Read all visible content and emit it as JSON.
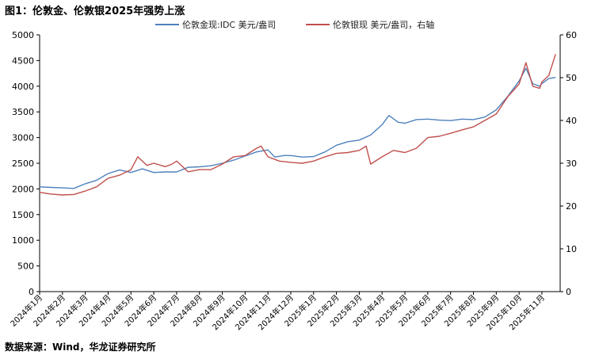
{
  "title": "图1：伦敦金、伦敦银2025年强势上涨",
  "source": "数据来源：Wind，华龙证券研究所",
  "colors": {
    "gold": "#4F81BD",
    "silver": "#C0504D",
    "axis": "#000000"
  },
  "chart_data": {
    "type": "line",
    "legend_position": "top-center",
    "grid": false,
    "y_left": {
      "min": 0,
      "max": 5000,
      "ticks": [
        0,
        500,
        1000,
        1500,
        2000,
        2500,
        3000,
        3500,
        4000,
        4500,
        5000
      ]
    },
    "y_right": {
      "min": 0,
      "max": 60,
      "ticks": [
        0,
        10,
        20,
        30,
        40,
        50,
        60
      ]
    },
    "x_labels": [
      "2024年1月",
      "2024年2月",
      "2024年3月",
      "2024年4月",
      "2024年5月",
      "2024年6月",
      "2024年7月",
      "2024年8月",
      "2024年9月",
      "2024年10月",
      "2024年11月",
      "2024年12月",
      "2025年1月",
      "2025年2月",
      "2025年3月",
      "2025年4月",
      "2025年5月",
      "2025年6月",
      "2025年7月",
      "2025年8月",
      "2025年9月",
      "2025年10月",
      "2025年11月"
    ],
    "series": [
      {
        "name": "伦敦金现:IDC 美元/盎司",
        "axis": "left",
        "color": "#4F81BD",
        "points": [
          [
            0,
            2040
          ],
          [
            0.5,
            2030
          ],
          [
            1,
            2020
          ],
          [
            1.5,
            2010
          ],
          [
            2,
            2100
          ],
          [
            2.5,
            2170
          ],
          [
            3,
            2300
          ],
          [
            3.5,
            2370
          ],
          [
            4,
            2320
          ],
          [
            4.5,
            2390
          ],
          [
            5,
            2320
          ],
          [
            5.5,
            2330
          ],
          [
            6,
            2330
          ],
          [
            6.5,
            2420
          ],
          [
            7,
            2430
          ],
          [
            7.5,
            2450
          ],
          [
            8,
            2500
          ],
          [
            8.5,
            2560
          ],
          [
            9,
            2640
          ],
          [
            9.5,
            2720
          ],
          [
            10,
            2760
          ],
          [
            10.3,
            2620
          ],
          [
            10.7,
            2650
          ],
          [
            11,
            2650
          ],
          [
            11.5,
            2620
          ],
          [
            12,
            2630
          ],
          [
            12.5,
            2720
          ],
          [
            13,
            2850
          ],
          [
            13.5,
            2920
          ],
          [
            14,
            2950
          ],
          [
            14.5,
            3050
          ],
          [
            15,
            3250
          ],
          [
            15.3,
            3430
          ],
          [
            15.7,
            3300
          ],
          [
            16,
            3280
          ],
          [
            16.5,
            3350
          ],
          [
            17,
            3360
          ],
          [
            17.5,
            3340
          ],
          [
            18,
            3330
          ],
          [
            18.5,
            3360
          ],
          [
            19,
            3350
          ],
          [
            19.5,
            3400
          ],
          [
            20,
            3540
          ],
          [
            20.5,
            3800
          ],
          [
            21,
            4100
          ],
          [
            21.3,
            4350
          ],
          [
            21.6,
            4050
          ],
          [
            21.9,
            4000
          ],
          [
            22,
            4050
          ],
          [
            22.3,
            4150
          ],
          [
            22.6,
            4170
          ]
        ]
      },
      {
        "name": "伦敦银现 美元/盎司，右轴",
        "axis": "right",
        "color": "#C0504D",
        "points": [
          [
            0,
            23.2
          ],
          [
            0.5,
            22.8
          ],
          [
            1,
            22.6
          ],
          [
            1.5,
            22.7
          ],
          [
            2,
            23.5
          ],
          [
            2.5,
            24.5
          ],
          [
            3,
            26.5
          ],
          [
            3.5,
            27.2
          ],
          [
            4,
            28.5
          ],
          [
            4.3,
            31.5
          ],
          [
            4.7,
            29.5
          ],
          [
            5,
            30.0
          ],
          [
            5.5,
            29.2
          ],
          [
            5.8,
            29.8
          ],
          [
            6,
            30.5
          ],
          [
            6.5,
            28.0
          ],
          [
            7,
            28.5
          ],
          [
            7.5,
            28.5
          ],
          [
            8,
            29.8
          ],
          [
            8.5,
            31.5
          ],
          [
            9,
            31.8
          ],
          [
            9.5,
            33.5
          ],
          [
            9.7,
            34.0
          ],
          [
            10,
            31.5
          ],
          [
            10.5,
            30.5
          ],
          [
            11,
            30.2
          ],
          [
            11.5,
            30.0
          ],
          [
            12,
            30.5
          ],
          [
            12.5,
            31.5
          ],
          [
            13,
            32.3
          ],
          [
            13.5,
            32.5
          ],
          [
            14,
            33.0
          ],
          [
            14.3,
            34.0
          ],
          [
            14.5,
            29.8
          ],
          [
            15,
            31.5
          ],
          [
            15.5,
            33.0
          ],
          [
            16,
            32.5
          ],
          [
            16.5,
            33.5
          ],
          [
            17,
            36.0
          ],
          [
            17.5,
            36.3
          ],
          [
            18,
            37.0
          ],
          [
            18.5,
            37.8
          ],
          [
            19,
            38.5
          ],
          [
            19.5,
            40.0
          ],
          [
            20,
            41.5
          ],
          [
            20.5,
            45.5
          ],
          [
            21,
            48.5
          ],
          [
            21.3,
            53.5
          ],
          [
            21.6,
            48.0
          ],
          [
            21.9,
            47.5
          ],
          [
            22,
            49.0
          ],
          [
            22.3,
            50.5
          ],
          [
            22.6,
            55.5
          ]
        ]
      }
    ]
  }
}
